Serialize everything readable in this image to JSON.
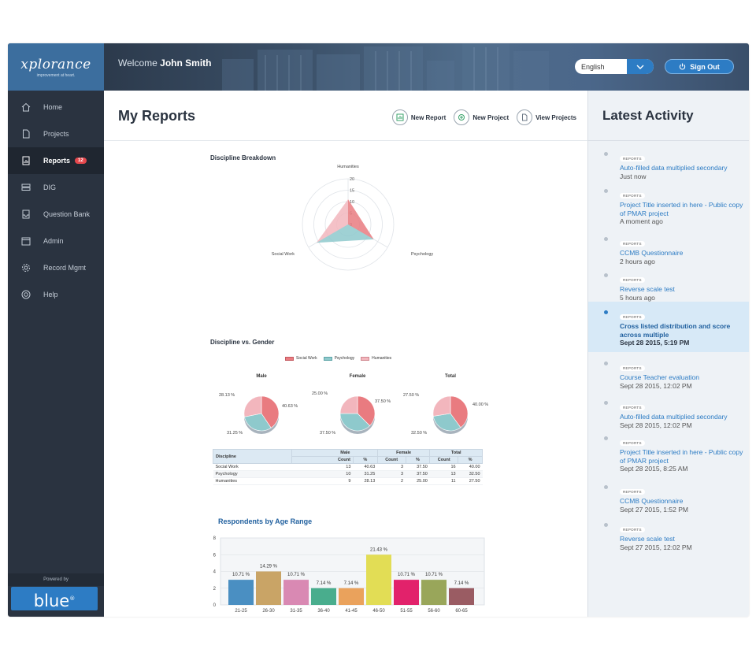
{
  "brand": {
    "logo": "xplorance",
    "tagline": "improvement at heart.",
    "powered_by": "Powered by",
    "blue": "blue"
  },
  "header": {
    "welcome": "Welcome",
    "user": "John Smith",
    "language": "English",
    "sign_out": "Sign Out"
  },
  "sidebar": {
    "items": [
      {
        "label": "Home",
        "icon": "home-icon"
      },
      {
        "label": "Projects",
        "icon": "document-icon"
      },
      {
        "label": "Reports",
        "icon": "report-icon",
        "badge": "12",
        "active": true
      },
      {
        "label": "DIG",
        "icon": "database-icon"
      },
      {
        "label": "Question Bank",
        "icon": "inbox-icon"
      },
      {
        "label": "Admin",
        "icon": "calendar-icon"
      },
      {
        "label": "Record Mgmt",
        "icon": "gear-icon"
      },
      {
        "label": "Help",
        "icon": "lifebuoy-icon"
      }
    ]
  },
  "main": {
    "title": "My Reports",
    "actions": {
      "new_report": "New Report",
      "new_project": "New Project",
      "view_projects": "View Projects"
    },
    "sections": {
      "breakdown": "Discipline Breakdown",
      "gender": "Discipline vs. Gender",
      "age": "Respondents by Age Range"
    },
    "pies": [
      {
        "title": "Male",
        "l1": "28.13 %",
        "l2": "40.63 %",
        "l3": "31.25 %"
      },
      {
        "title": "Female",
        "l1": "25.00 %",
        "l2": "37.50 %",
        "l3": "37.50 %"
      },
      {
        "title": "Total",
        "l1": "27.50 %",
        "l2": "40.00 %",
        "l3": "32.50 %"
      }
    ],
    "legend": [
      "Social Work",
      "Psychology",
      "Humanities"
    ],
    "table": {
      "h_discipline": "Discipline",
      "h_male": "Male",
      "h_female": "Female",
      "h_total": "Total",
      "h_count": "Count",
      "h_pct": "%",
      "rows": [
        [
          "Social Work",
          "13",
          "40.63",
          "3",
          "37.50",
          "16",
          "40.00"
        ],
        [
          "Psychology",
          "10",
          "31.25",
          "3",
          "37.50",
          "13",
          "32.50"
        ],
        [
          "Humanities",
          "9",
          "28.13",
          "2",
          "25.00",
          "11",
          "27.50"
        ]
      ]
    }
  },
  "activity": {
    "title": "Latest Activity",
    "tag": "REPORTS",
    "items": [
      {
        "title": "Auto-filled data multiplied secondary",
        "time": "Just now"
      },
      {
        "title": "Project Title inserted in here - Public copy of PMAR project",
        "time": "A moment ago"
      },
      {
        "title": "CCMB Questionnaire",
        "time": "2 hours ago"
      },
      {
        "title": "Reverse scale test",
        "time": "5 hours ago"
      },
      {
        "title": "Cross listed distribution and score across multiple",
        "time": "Sept 28 2015, 5:19 PM"
      },
      {
        "title": "Course Teacher evaluation",
        "time": "Sept 28 2015, 12:02 PM"
      },
      {
        "title": "Auto-filled data multiplied secondary",
        "time": "Sept 28 2015, 12:02 PM"
      },
      {
        "title": "Project Title inserted in here - Public copy of PMAR project",
        "time": "Sept 28 2015, 8:25 AM"
      },
      {
        "title": "CCMB Questionnaire",
        "time": "Sept 27 2015, 1:52 PM"
      },
      {
        "title": "Reverse scale test",
        "time": "Sept 27 2015, 12:02 PM"
      }
    ]
  },
  "colors": {
    "social_work": "#e97b80",
    "psychology": "#8ec9cc",
    "humanities": "#f2b6bd",
    "accent": "#2d7cc4",
    "sidebar": "#2a3340"
  },
  "chart_data": [
    {
      "type": "radar",
      "title": "Discipline Breakdown",
      "categories": [
        "Humanities",
        "Psychology",
        "Social Work"
      ],
      "ticks": [
        "0",
        "5",
        "10",
        "15",
        "20"
      ],
      "rlim": [
        0,
        20
      ],
      "values": [
        11,
        13,
        16
      ]
    },
    {
      "type": "pie",
      "title": "Male",
      "categories": [
        "Social Work",
        "Psychology",
        "Humanities"
      ],
      "values": [
        40.63,
        31.25,
        28.13
      ]
    },
    {
      "type": "pie",
      "title": "Female",
      "categories": [
        "Social Work",
        "Psychology",
        "Humanities"
      ],
      "values": [
        37.5,
        37.5,
        25.0
      ]
    },
    {
      "type": "pie",
      "title": "Total",
      "categories": [
        "Social Work",
        "Psychology",
        "Humanities"
      ],
      "values": [
        40.0,
        32.5,
        27.5
      ]
    },
    {
      "type": "bar",
      "title": "Respondents by Age Range",
      "categories": [
        "21-25",
        "26-30",
        "31-35",
        "36-40",
        "41-45",
        "46-50",
        "51-55",
        "56-60",
        "60-65"
      ],
      "values": [
        3,
        4,
        3,
        2,
        2,
        6,
        3,
        3,
        2
      ],
      "labels": [
        "10.71 %",
        "14.29 %",
        "10.71 %",
        "7.14 %",
        "7.14 %",
        "21.43 %",
        "10.71 %",
        "10.71 %",
        "7.14 %"
      ],
      "colors": [
        "#4a8fc2",
        "#c9a466",
        "#d989b3",
        "#49ad8d",
        "#eaa25c",
        "#e2dd55",
        "#e2226b",
        "#99a65a",
        "#9a5c63"
      ],
      "ylim": [
        0,
        8
      ],
      "yticks": [
        "0",
        "2",
        "4",
        "6",
        "8"
      ]
    }
  ]
}
